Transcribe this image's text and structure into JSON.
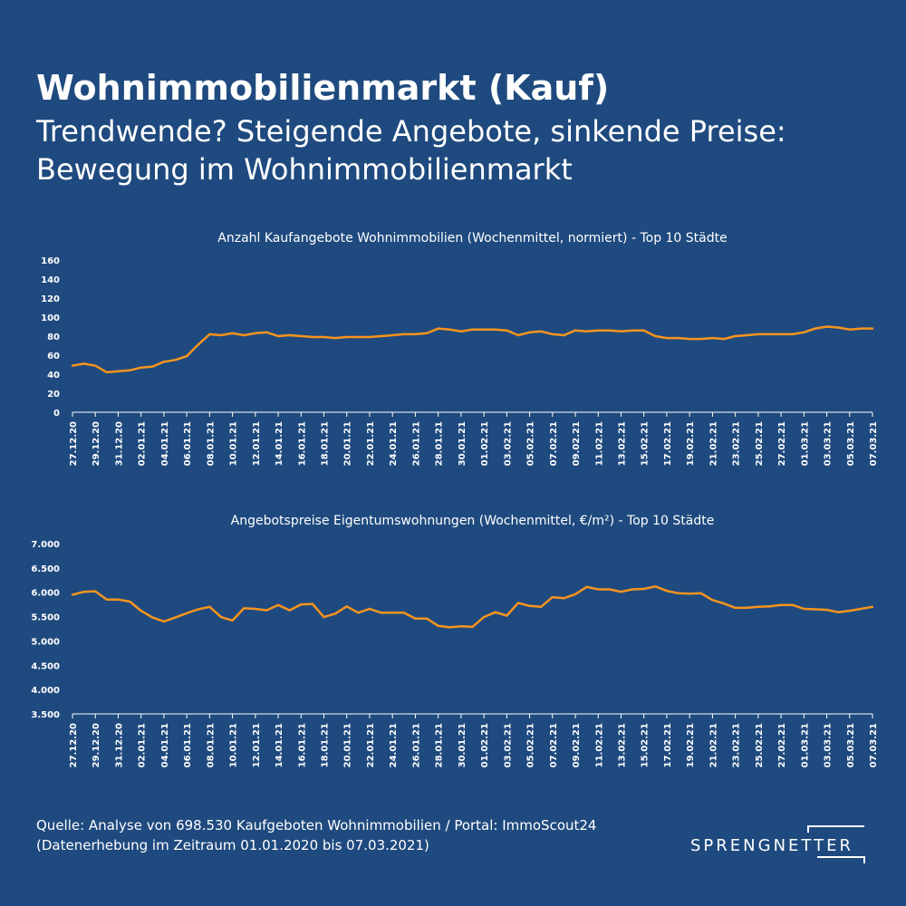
{
  "header": {
    "title": "Wohnimmobilienmarkt (Kauf)",
    "subtitle": "Trendwende? Steigende Angebote, sinkende Preise: Bewegung im Wohnimmobilienmarkt"
  },
  "colors": {
    "background": "#1f4a7f",
    "line": "#f7941d",
    "text": "#ffffff"
  },
  "chart_data": [
    {
      "type": "line",
      "title": "Anzahl Kaufangebote Wohnimmobilien (Wochenmittel, normiert) - Top 10 Städte",
      "ylim": [
        0,
        160
      ],
      "yticks": [
        "0",
        "20",
        "40",
        "60",
        "80",
        "100",
        "120",
        "140",
        "160"
      ],
      "xtick_labels": [
        "27.12.20",
        "29.12.20",
        "31.12.20",
        "02.01.21",
        "04.01.21",
        "06.01.21",
        "08.01.21",
        "10.01.21",
        "12.01.21",
        "14.01.21",
        "16.01.21",
        "18.01.21",
        "20.01.21",
        "22.01.21",
        "24.01.21",
        "26.01.21",
        "28.01.21",
        "30.01.21",
        "01.02.21",
        "03.02.21",
        "05.02.21",
        "07.02.21",
        "09.02.21",
        "11.02.21",
        "13.02.21",
        "15.02.21",
        "17.02.21",
        "19.02.21",
        "21.02.21",
        "23.02.21",
        "25.02.21",
        "27.02.21",
        "01.03.21",
        "03.03.21",
        "05.03.21",
        "07.03.21"
      ],
      "values": [
        49,
        51,
        49,
        42,
        43,
        44,
        47,
        48,
        53,
        55,
        59,
        71,
        82,
        81,
        83,
        81,
        83,
        84,
        80,
        81,
        80,
        79,
        79,
        78,
        79,
        79,
        79,
        80,
        81,
        82,
        82,
        83,
        88,
        87,
        85,
        87,
        87,
        87,
        86,
        81,
        84,
        85,
        82,
        81,
        86,
        85,
        86,
        86,
        85,
        86,
        86,
        80,
        78,
        78,
        77,
        77,
        78,
        77,
        80,
        81,
        82,
        82,
        82,
        82,
        84,
        88,
        90,
        89,
        87,
        88,
        88
      ]
    },
    {
      "type": "line",
      "title": "Angebotspreise Eigentumswohnungen (Wochenmittel, €/m²) - Top 10 Städte",
      "ylim": [
        3500,
        7000
      ],
      "yticks": [
        "3.500",
        "4.000",
        "4.500",
        "5.000",
        "5.500",
        "6.000",
        "6.500",
        "7.000"
      ],
      "xtick_labels": [
        "27.12.20",
        "29.12.20",
        "31.12.20",
        "02.01.21",
        "04.01.21",
        "06.01.21",
        "08.01.21",
        "10.01.21",
        "12.01.21",
        "14.01.21",
        "16.01.21",
        "18.01.21",
        "20.01.21",
        "22.01.21",
        "24.01.21",
        "26.01.21",
        "28.01.21",
        "30.01.21",
        "01.02.21",
        "03.02.21",
        "05.02.21",
        "07.02.21",
        "09.02.21",
        "11.02.21",
        "13.02.21",
        "15.02.21",
        "17.02.21",
        "19.02.21",
        "21.02.21",
        "23.02.21",
        "25.02.21",
        "27.02.21",
        "01.03.21",
        "03.03.21",
        "05.03.21",
        "07.03.21"
      ],
      "values": [
        5950,
        6010,
        6020,
        5850,
        5850,
        5810,
        5620,
        5480,
        5400,
        5480,
        5570,
        5650,
        5700,
        5490,
        5420,
        5670,
        5660,
        5630,
        5740,
        5630,
        5750,
        5760,
        5490,
        5560,
        5710,
        5580,
        5660,
        5580,
        5580,
        5580,
        5460,
        5460,
        5310,
        5280,
        5300,
        5290,
        5490,
        5590,
        5520,
        5780,
        5720,
        5700,
        5900,
        5880,
        5960,
        6110,
        6060,
        6060,
        6010,
        6060,
        6070,
        6120,
        6030,
        5980,
        5970,
        5980,
        5840,
        5770,
        5680,
        5680,
        5700,
        5710,
        5740,
        5740,
        5660,
        5650,
        5640,
        5590,
        5620,
        5660,
        5700
      ]
    }
  ],
  "footer": {
    "source_line1": "Quelle: Analyse von  698.530 Kaufgeboten Wohnimmobilien / Portal: ImmoScout24",
    "source_line2": "(Datenerhebung im Zeitraum 01.01.2020 bis 07.03.2021)"
  },
  "logo": {
    "text": "SPRENGNETTER"
  }
}
